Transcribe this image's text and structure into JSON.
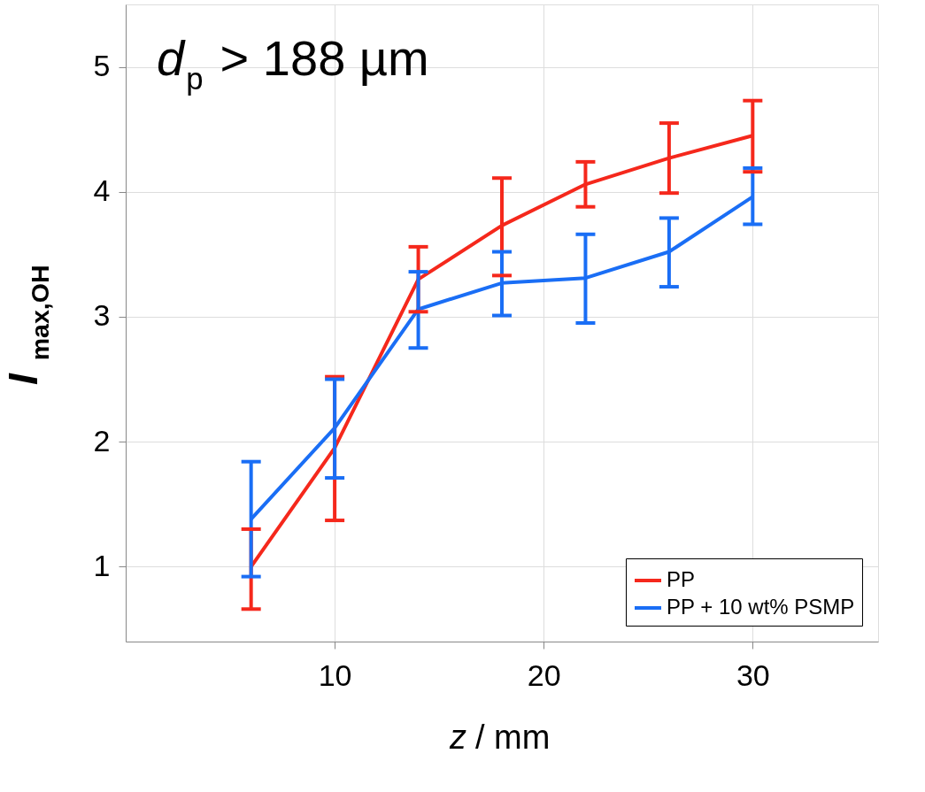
{
  "chart_data": {
    "type": "line",
    "xlabel": "z / mm",
    "ylabel": "I$_{max,OH}$",
    "annotations": [
      "d$_{p}$ > 188 µm"
    ],
    "x": [
      6,
      10,
      14,
      18,
      22,
      26,
      30
    ],
    "series": [
      {
        "name": "PP",
        "color": "#f5281c",
        "values": [
          1.0,
          1.95,
          3.3,
          3.73,
          4.06,
          4.27,
          4.45
        ],
        "errors": [
          [
            0.66,
            1.3
          ],
          [
            1.37,
            2.52
          ],
          [
            3.04,
            3.56
          ],
          [
            3.33,
            4.11
          ],
          [
            3.88,
            4.24
          ],
          [
            3.99,
            4.55
          ],
          [
            4.16,
            4.73
          ]
        ]
      },
      {
        "name": "PP + 10 wt% PSMP",
        "color": "#1a6ef5",
        "values": [
          1.38,
          2.11,
          3.06,
          3.27,
          3.31,
          3.52,
          3.96
        ],
        "errors": [
          [
            0.92,
            1.84
          ],
          [
            1.71,
            2.5
          ],
          [
            2.75,
            3.36
          ],
          [
            3.01,
            3.52
          ],
          [
            2.95,
            3.66
          ],
          [
            3.24,
            3.79
          ],
          [
            3.74,
            4.19
          ]
        ]
      }
    ],
    "xlim": [
      0,
      36
    ],
    "ylim": [
      0.4,
      5.5
    ],
    "xticks": [
      10,
      20,
      30
    ],
    "yticks": [
      1,
      2,
      3,
      4,
      5
    ],
    "grid": true,
    "legend": "bottom right",
    "marker": "none",
    "line_style": "solid"
  }
}
